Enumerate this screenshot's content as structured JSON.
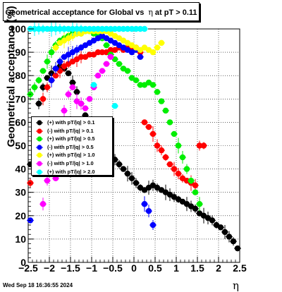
{
  "chart_data": {
    "type": "scatter",
    "title_prefix": "Geometrical acceptance for Global vs",
    "title_symbol": "η",
    "title_suffix": "at pT > 0.11",
    "xlabel": "η",
    "ylabel": "Geometrical acceptance (%)",
    "xlim": [
      -2.5,
      2.5
    ],
    "ylim": [
      0,
      100
    ],
    "x_ticks": [
      "−2.5",
      "−2",
      "−1.5",
      "−1",
      "−0.5",
      "0",
      "0.5",
      "1",
      "1.5",
      "2",
      "2.5"
    ],
    "y_ticks": [
      "0",
      "10",
      "20",
      "30",
      "40",
      "50",
      "60",
      "70",
      "80",
      "90",
      "100"
    ],
    "grid": true,
    "legend_position": "left-middle",
    "footer_text": "Wed Sep 18 16:36:55 2024",
    "series": [
      {
        "name": "(+) with pT/|q| > 0.1",
        "color": "#000000",
        "x": [
          -2.45,
          -2.35,
          -2.25,
          -2.15,
          -2.05,
          -1.95,
          -1.85,
          -1.75,
          -1.65,
          -1.55,
          -1.45,
          -1.35,
          -1.25,
          -1.15,
          -1.05,
          -0.95,
          -0.85,
          -0.75,
          -0.65,
          -0.55,
          -0.45,
          -0.35,
          -0.25,
          -0.15,
          -0.05,
          0.05,
          0.15,
          0.25,
          0.35,
          0.45,
          0.55,
          0.65,
          0.75,
          0.85,
          0.95,
          1.05,
          1.15,
          1.25,
          1.35,
          1.45,
          1.55,
          1.65,
          1.75,
          1.85,
          1.95,
          2.05,
          2.15,
          2.25,
          2.35,
          2.45
        ],
        "y": [
          42,
          55,
          68,
          75,
          79,
          81,
          83,
          84,
          83,
          81,
          77,
          73,
          68,
          63,
          59,
          55,
          52,
          50,
          48,
          46,
          44,
          42,
          40,
          38,
          36,
          34,
          32,
          31,
          32,
          33,
          32,
          31,
          30,
          29,
          28,
          27,
          26,
          25,
          24,
          23,
          21,
          20,
          19,
          18,
          16,
          15,
          13,
          11,
          9,
          6
        ]
      },
      {
        "name": "(-) with pT/|q| > 0.1",
        "color": "#ff0000",
        "x": [
          -2.45,
          -2.35,
          -2.25,
          -2.15,
          -2.05,
          -1.95,
          -1.85,
          -1.75,
          -1.65,
          -1.55,
          -1.45,
          -1.35,
          -1.25,
          -1.15,
          -1.05,
          -0.95,
          -0.85,
          -0.75,
          -0.65,
          -0.55,
          -0.45,
          -0.35,
          -0.25,
          -0.15,
          -0.05,
          0.05,
          0.15,
          0.25,
          0.35,
          0.45,
          0.55,
          0.65,
          0.75,
          0.85,
          0.95,
          1.05,
          1.15,
          1.25,
          1.35,
          1.45,
          1.55,
          1.65
        ],
        "y": [
          34,
          42,
          55,
          70,
          75,
          78,
          80,
          82,
          84,
          85,
          86,
          87,
          88,
          88,
          89,
          89,
          90,
          90,
          90,
          91,
          91,
          92,
          91,
          92,
          91,
          92,
          90,
          60,
          58,
          55,
          50,
          48,
          45,
          42,
          40,
          38,
          36,
          35,
          34,
          33,
          50,
          50
        ]
      },
      {
        "name": "(+) with pT/|q| > 0.5",
        "color": "#00ee00",
        "x": [
          -2.45,
          -2.35,
          -2.25,
          -2.15,
          -2.05,
          -1.95,
          -1.85,
          -1.75,
          -1.65,
          -1.55,
          -1.45,
          -1.35,
          -1.25,
          -1.15,
          -1.05,
          -0.95,
          -0.85,
          -0.75,
          -0.65,
          -0.55,
          -0.45,
          -0.35,
          -0.25,
          -0.15,
          -0.05,
          0.05,
          0.15,
          0.25,
          0.35,
          0.45,
          0.55,
          0.65,
          0.75,
          0.85,
          0.95,
          1.05,
          1.15,
          1.25,
          1.35,
          1.45,
          1.55
        ],
        "y": [
          72,
          75,
          78,
          82,
          86,
          90,
          93,
          95,
          96,
          97,
          98,
          98,
          98,
          99,
          99,
          98,
          97,
          96,
          93,
          89,
          87,
          85,
          83,
          82,
          79,
          78,
          76,
          76,
          77,
          76,
          73,
          69,
          65,
          60,
          55,
          50,
          45,
          40,
          35,
          30,
          25
        ]
      },
      {
        "name": "(-) with pT/|q| > 0.5",
        "color": "#0000ff",
        "x": [
          -2.45,
          -1.95,
          -1.85,
          -1.75,
          -1.65,
          -1.55,
          -1.45,
          -1.35,
          -1.25,
          -1.15,
          -1.05,
          -0.95,
          -0.85,
          -0.75,
          -0.65,
          -0.55,
          -0.45,
          -0.35,
          -0.25,
          -0.15,
          -0.05,
          0.05,
          0.15,
          0.25,
          0.35,
          0.45
        ],
        "y": [
          18,
          78,
          83,
          86,
          88,
          89,
          90,
          91,
          92,
          93,
          94,
          95,
          96,
          97,
          96,
          95,
          94,
          93,
          92,
          91,
          90,
          91,
          88,
          25,
          22,
          16
        ]
      },
      {
        "name": "(+) with pT/|q| > 1.0",
        "color": "#ffff00",
        "x": [
          -1.85,
          -1.75,
          -1.65,
          -1.55,
          -1.45,
          -1.35,
          -1.25,
          -1.15,
          -1.05,
          -0.95,
          -0.85,
          -0.75,
          -0.65,
          -0.55,
          -0.45,
          -0.35,
          -0.25,
          -0.15,
          -0.05,
          0.05,
          0.15,
          0.25,
          0.35,
          0.45,
          0.55,
          0.65
        ],
        "y": [
          92,
          94,
          95,
          96,
          97,
          98,
          98,
          99,
          99,
          99,
          99,
          99,
          99,
          98,
          97,
          96,
          95,
          94,
          93,
          92,
          91,
          92,
          91,
          90,
          92,
          94
        ]
      },
      {
        "name": "(-) with pT/|q| > 1.0",
        "color": "#ff00ff",
        "x": [
          -2.15,
          -2.05,
          -1.95,
          -1.85,
          -1.75,
          -1.65,
          -1.55,
          -1.45,
          -1.35,
          -1.25,
          -1.15,
          -1.05,
          -0.95,
          -0.85,
          -0.75,
          -0.65,
          -0.55
        ],
        "y": [
          25,
          35,
          40,
          36,
          55,
          65,
          72,
          75,
          69,
          68,
          66,
          70,
          75,
          80,
          82,
          85,
          88
        ]
      },
      {
        "name": "(+) with pT/|q| > 2.0",
        "color": "#00ffff",
        "x": [
          -2.45,
          -2.35,
          -2.25,
          -2.15,
          -2.05,
          -1.95,
          -1.85,
          -1.75,
          -1.65,
          -1.55,
          -1.45,
          -1.35,
          -1.25,
          -1.15,
          -1.05,
          -0.95,
          -0.85,
          -0.75,
          -0.65,
          -0.55,
          -0.45,
          -0.35,
          -0.25,
          -0.15,
          -0.05,
          0.05,
          0.15,
          0.25,
          -0.95,
          -0.45
        ],
        "y": [
          100,
          100,
          100,
          100,
          100,
          100,
          100,
          100,
          100,
          100,
          100,
          100,
          100,
          100,
          100,
          100,
          100,
          100,
          100,
          100,
          100,
          100,
          100,
          100,
          100,
          100,
          100,
          100,
          76,
          67
        ]
      }
    ]
  }
}
